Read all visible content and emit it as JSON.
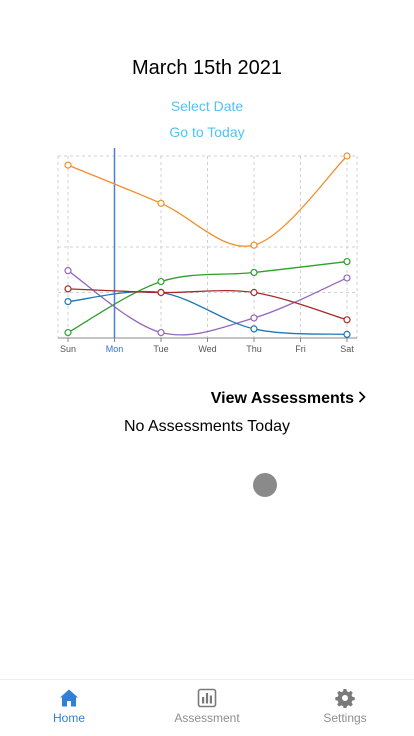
{
  "header": {
    "date": "March 15th 2021",
    "select_date": "Select Date",
    "go_to_today": "Go to Today"
  },
  "chart_data": {
    "type": "line",
    "categories": [
      "Sun",
      "Mon",
      "Tue",
      "Wed",
      "Thu",
      "Fri",
      "Sat"
    ],
    "highlight_category": "Mon",
    "ylim": [
      0,
      10
    ],
    "grid": true,
    "series": [
      {
        "color": "#f28e2b",
        "points": [
          [
            0,
            9.5
          ],
          [
            2,
            7.4
          ],
          [
            4,
            5.1
          ],
          [
            6,
            10
          ]
        ]
      },
      {
        "color": "#2ca02c",
        "points": [
          [
            0,
            0.3
          ],
          [
            2,
            3.1
          ],
          [
            4,
            3.6
          ],
          [
            6,
            4.2
          ]
        ]
      },
      {
        "color": "#9467bd",
        "points": [
          [
            0,
            3.7
          ],
          [
            2,
            0.3
          ],
          [
            4,
            1.1
          ],
          [
            6,
            3.3
          ]
        ]
      },
      {
        "color": "#1f77b4",
        "points": [
          [
            0,
            2.0
          ],
          [
            2,
            2.5
          ],
          [
            4,
            0.5
          ],
          [
            6,
            0.2
          ]
        ]
      },
      {
        "color": "#a52a2a",
        "points": [
          [
            0,
            2.7
          ],
          [
            2,
            2.5
          ],
          [
            4,
            2.5
          ],
          [
            6,
            1.0
          ]
        ]
      }
    ]
  },
  "assessments": {
    "view_label": "View Assessments",
    "empty_label": "No Assessments Today"
  },
  "tabbar": {
    "items": [
      {
        "label": "Home",
        "icon": "home-icon",
        "active": true
      },
      {
        "label": "Assessment",
        "icon": "bar-chart-icon",
        "active": false
      },
      {
        "label": "Settings",
        "icon": "gear-icon",
        "active": false
      }
    ],
    "active_color": "#2f80d6",
    "inactive_color": "#8e8e8e"
  }
}
